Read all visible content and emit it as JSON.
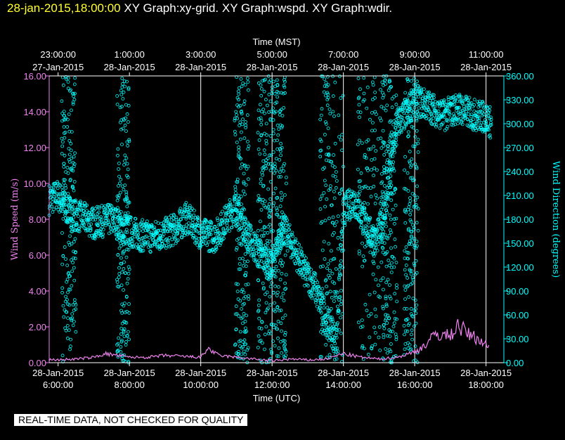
{
  "header": {
    "date": "28-jan-2015,18:00:00",
    "graphs": " XY Graph:xy-grid.  XY Graph:wspd.  XY Graph:wdir."
  },
  "notice": "REAL-TIME DATA, NOT CHECKED FOR QUALITY",
  "colors": {
    "wspd": "#ee82ee",
    "wdir": "#00ffff",
    "grid": "#ffffff",
    "background": "#000000"
  },
  "chart_data": {
    "type": "scatter",
    "x_bottom": {
      "title": "Time (UTC)",
      "range_hours": [
        5.75,
        18.5
      ],
      "ticks": [
        {
          "h": 6,
          "date": "28-Jan-2015",
          "time": "6:00:00"
        },
        {
          "h": 8,
          "date": "28-Jan-2015",
          "time": "8:00:00"
        },
        {
          "h": 10,
          "date": "28-Jan-2015",
          "time": "10:00:00"
        },
        {
          "h": 12,
          "date": "28-Jan-2015",
          "time": "12:00:00"
        },
        {
          "h": 14,
          "date": "28-Jan-2015",
          "time": "14:00:00"
        },
        {
          "h": 16,
          "date": "28-Jan-2015",
          "time": "16:00:00"
        },
        {
          "h": 18,
          "date": "28-Jan-2015",
          "time": "18:00:00"
        }
      ]
    },
    "x_top": {
      "title": "Time (MST)",
      "ticks": [
        {
          "h": 6,
          "date": "27-Jan-2015",
          "time": "23:00:00"
        },
        {
          "h": 8,
          "date": "28-Jan-2015",
          "time": "1:00:00"
        },
        {
          "h": 10,
          "date": "28-Jan-2015",
          "time": "3:00:00"
        },
        {
          "h": 12,
          "date": "28-Jan-2015",
          "time": "5:00:00"
        },
        {
          "h": 14,
          "date": "28-Jan-2015",
          "time": "7:00:00"
        },
        {
          "h": 16,
          "date": "28-Jan-2015",
          "time": "9:00:00"
        },
        {
          "h": 18,
          "date": "28-Jan-2015",
          "time": "11:00:00"
        }
      ]
    },
    "y_left": {
      "title": "Wind Speed (m/s)",
      "range": [
        0,
        16
      ],
      "ticks": [
        "0.00",
        "2.00",
        "4.00",
        "6.00",
        "8.00",
        "10.00",
        "12.00",
        "14.00",
        "16.00"
      ]
    },
    "y_right": {
      "title": "Wind Direction (degrees)",
      "range": [
        0,
        360
      ],
      "ticks": [
        "0.00",
        "30.00",
        "60.00",
        "90.00",
        "120.00",
        "150.00",
        "180.00",
        "210.00",
        "240.00",
        "270.00",
        "300.00",
        "330.00",
        "360.00"
      ]
    },
    "grid_hours": [
      10,
      12,
      14,
      16,
      18
    ],
    "series": [
      {
        "name": "Wind Speed",
        "axis": "left",
        "style": "line",
        "points": [
          [
            5.75,
            0.15
          ],
          [
            6.5,
            0.2
          ],
          [
            7.0,
            0.3
          ],
          [
            7.3,
            0.5
          ],
          [
            7.7,
            0.4
          ],
          [
            8.0,
            0.3
          ],
          [
            8.5,
            0.3
          ],
          [
            9.0,
            0.4
          ],
          [
            9.5,
            0.35
          ],
          [
            10.0,
            0.3
          ],
          [
            10.2,
            0.8
          ],
          [
            10.5,
            0.4
          ],
          [
            11.0,
            0.3
          ],
          [
            11.5,
            0.2
          ],
          [
            12.0,
            0.1
          ],
          [
            12.5,
            0.2
          ],
          [
            13.0,
            0.15
          ],
          [
            13.5,
            0.2
          ],
          [
            14.0,
            0.5
          ],
          [
            14.5,
            0.3
          ],
          [
            15.0,
            0.2
          ],
          [
            15.5,
            0.3
          ],
          [
            16.0,
            0.6
          ],
          [
            16.3,
            1.0
          ],
          [
            16.6,
            1.6
          ],
          [
            17.0,
            1.5
          ],
          [
            17.2,
            2.1
          ],
          [
            17.5,
            1.6
          ],
          [
            17.8,
            1.3
          ],
          [
            18.0,
            1.0
          ],
          [
            18.1,
            0.8
          ]
        ]
      },
      {
        "name": "Wind Direction",
        "axis": "right",
        "style": "dense-scatter",
        "points": [
          [
            5.75,
            205
          ],
          [
            6.0,
            210
          ],
          [
            6.2,
            195
          ],
          [
            6.5,
            185
          ],
          [
            6.8,
            180
          ],
          [
            7.0,
            175
          ],
          [
            7.3,
            178
          ],
          [
            7.5,
            180
          ],
          [
            7.8,
            170
          ],
          [
            8.0,
            165
          ],
          [
            8.3,
            160
          ],
          [
            8.6,
            158
          ],
          [
            9.0,
            162
          ],
          [
            9.3,
            168
          ],
          [
            9.6,
            182
          ],
          [
            10.0,
            162
          ],
          [
            10.4,
            158
          ],
          [
            10.8,
            185
          ],
          [
            11.0,
            198
          ],
          [
            11.3,
            160
          ],
          [
            11.6,
            140
          ],
          [
            12.0,
            118
          ],
          [
            12.3,
            170
          ],
          [
            12.6,
            145
          ],
          [
            12.9,
            115
          ],
          [
            13.2,
            95
          ],
          [
            13.5,
            55
          ],
          [
            13.8,
            28
          ],
          [
            14.0,
            190
          ],
          [
            14.3,
            205
          ],
          [
            14.6,
            175
          ],
          [
            14.9,
            150
          ],
          [
            15.2,
            195
          ],
          [
            15.5,
            300
          ],
          [
            15.8,
            315
          ],
          [
            16.0,
            330
          ],
          [
            16.4,
            322
          ],
          [
            16.8,
            310
          ],
          [
            17.2,
            320
          ],
          [
            17.6,
            312
          ],
          [
            18.0,
            308
          ],
          [
            18.15,
            300
          ]
        ],
        "bursts": [
          [
            6.1,
            6.5
          ],
          [
            7.65,
            8.0
          ],
          [
            10.95,
            11.35
          ],
          [
            11.6,
            12.0
          ],
          [
            12.0,
            12.4
          ],
          [
            13.35,
            14.0
          ],
          [
            14.4,
            15.2
          ],
          [
            15.1,
            15.5
          ],
          [
            15.7,
            16.1
          ]
        ]
      }
    ]
  }
}
